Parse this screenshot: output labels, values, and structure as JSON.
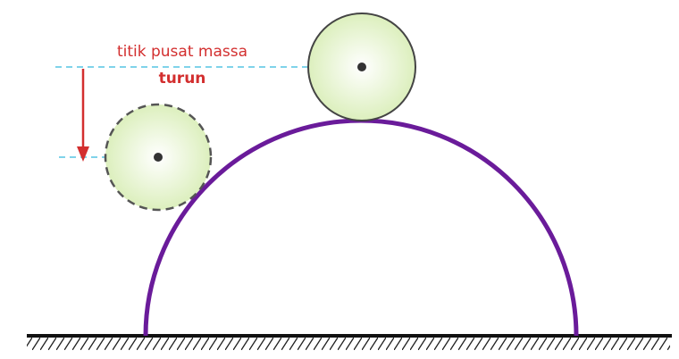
{
  "diagram": {
    "label_line1": "titik pusat massa",
    "label_line2": "turun"
  },
  "colors": {
    "annotation": "#d32f2f",
    "guide_line": "#7fd3ea",
    "hill": "#6a1b9a",
    "ball_fill": "#e6f5cf",
    "ball_stroke": "#444444",
    "ground": "#111111",
    "center_dot": "#333333"
  }
}
